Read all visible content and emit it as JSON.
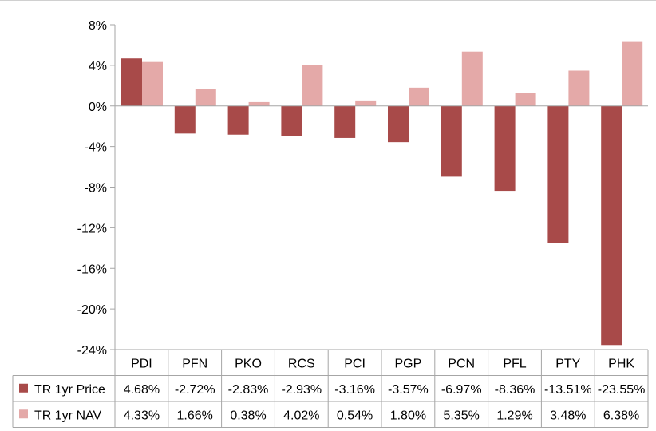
{
  "chart_data": {
    "type": "bar",
    "categories": [
      "PDI",
      "PFN",
      "PKO",
      "RCS",
      "PCI",
      "PGP",
      "PCN",
      "PFL",
      "PTY",
      "PHK"
    ],
    "series": [
      {
        "name": "TR 1yr Price",
        "color": "#a84a49",
        "values": [
          4.68,
          -2.72,
          -2.83,
          -2.93,
          -3.16,
          -3.57,
          -6.97,
          -8.36,
          -13.51,
          -23.55
        ],
        "labels": [
          "4.68%",
          "-2.72%",
          "-2.83%",
          "-2.93%",
          "-3.16%",
          "-3.57%",
          "-6.97%",
          "-8.36%",
          "-13.51%",
          "-23.55%"
        ]
      },
      {
        "name": "TR 1yr NAV",
        "color": "#e4a9a8",
        "values": [
          4.33,
          1.66,
          0.38,
          4.02,
          0.54,
          1.8,
          5.35,
          1.29,
          3.48,
          6.38
        ],
        "labels": [
          "4.33%",
          "1.66%",
          "0.38%",
          "4.02%",
          "0.54%",
          "1.80%",
          "5.35%",
          "1.29%",
          "3.48%",
          "6.38%"
        ]
      }
    ],
    "yticks": [
      "8%",
      "4%",
      "0%",
      "-4%",
      "-8%",
      "-12%",
      "-16%",
      "-20%",
      "-24%"
    ],
    "ytick_values": [
      8,
      4,
      0,
      -4,
      -8,
      -12,
      -16,
      -20,
      -24
    ],
    "ylim": [
      -24,
      8
    ],
    "grid": false,
    "legend": "data-table"
  }
}
